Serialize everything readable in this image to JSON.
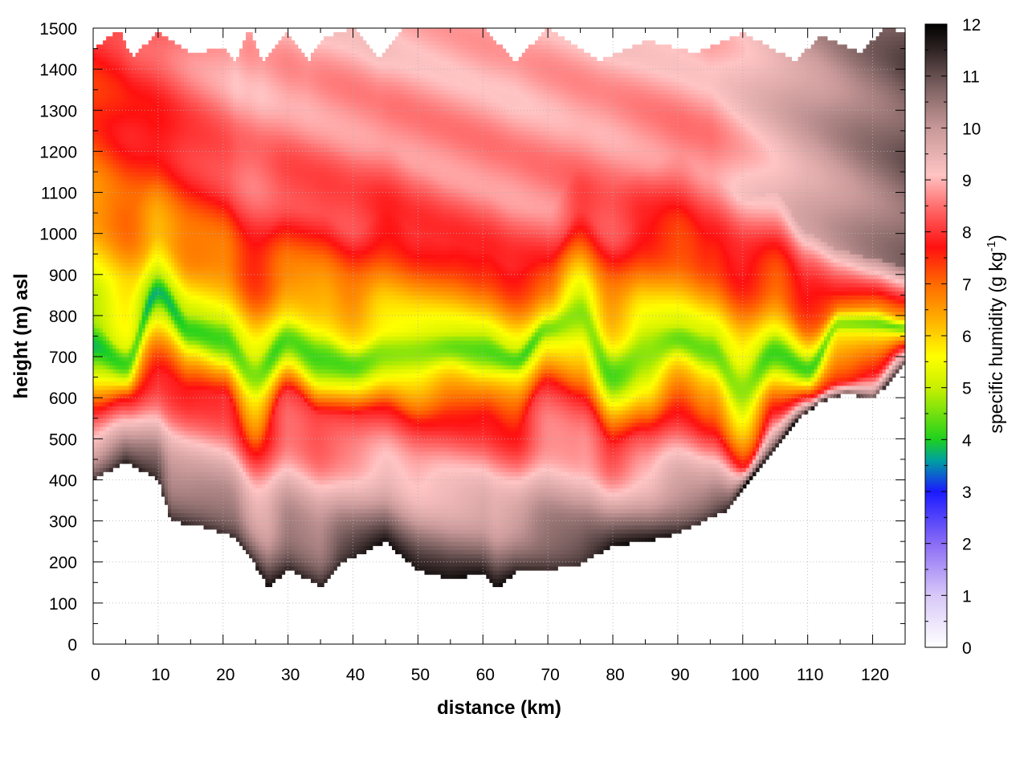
{
  "chart_data": {
    "type": "heatmap",
    "xlabel": "distance (km)",
    "ylabel": "height (m) asl",
    "xlim": [
      0,
      125
    ],
    "ylim": [
      0,
      1500
    ],
    "x_ticks": [
      "0",
      "10",
      "20",
      "30",
      "40",
      "50",
      "60",
      "70",
      "80",
      "90",
      "100",
      "110",
      "120"
    ],
    "y_ticks": [
      "0",
      "100",
      "200",
      "300",
      "400",
      "500",
      "600",
      "700",
      "800",
      "900",
      "1000",
      "1100",
      "1200",
      "1300",
      "1400",
      "1500"
    ],
    "grid": true,
    "colorbar": {
      "label_main": "specific humidity (g kg",
      "label_sup": "-1",
      "label_end": ")",
      "range": [
        0,
        12
      ],
      "ticks": [
        "0",
        "1",
        "2",
        "3",
        "4",
        "5",
        "6",
        "7",
        "8",
        "9",
        "10",
        "11",
        "12"
      ]
    },
    "colormap_stops": [
      {
        "value": 0,
        "color": "#ffffff"
      },
      {
        "value": 1,
        "color": "#d8c8f8"
      },
      {
        "value": 2,
        "color": "#8a6cf6"
      },
      {
        "value": 3,
        "color": "#1a1aff"
      },
      {
        "value": 3.6,
        "color": "#00a0a0"
      },
      {
        "value": 4,
        "color": "#1ed01e"
      },
      {
        "value": 5,
        "color": "#c8f000"
      },
      {
        "value": 5.6,
        "color": "#ffff00"
      },
      {
        "value": 6.3,
        "color": "#ffb000"
      },
      {
        "value": 7,
        "color": "#ff6a00"
      },
      {
        "value": 7.7,
        "color": "#ff1010"
      },
      {
        "value": 8.5,
        "color": "#ff6f6f"
      },
      {
        "value": 9.1,
        "color": "#ffc4c4"
      },
      {
        "value": 10,
        "color": "#c89898"
      },
      {
        "value": 10.8,
        "color": "#7c6060"
      },
      {
        "value": 11.5,
        "color": "#302424"
      },
      {
        "value": 12,
        "color": "#000000"
      }
    ],
    "data_bottom_m": [
      [
        0,
        400
      ],
      [
        5,
        445
      ],
      [
        10,
        400
      ],
      [
        12,
        300
      ],
      [
        17,
        285
      ],
      [
        22,
        260
      ],
      [
        25,
        190
      ],
      [
        27,
        135
      ],
      [
        30,
        185
      ],
      [
        35,
        140
      ],
      [
        38,
        200
      ],
      [
        42,
        225
      ],
      [
        45,
        250
      ],
      [
        48,
        205
      ],
      [
        50,
        180
      ],
      [
        55,
        160
      ],
      [
        60,
        170
      ],
      [
        62,
        135
      ],
      [
        65,
        175
      ],
      [
        70,
        180
      ],
      [
        75,
        195
      ],
      [
        80,
        240
      ],
      [
        85,
        250
      ],
      [
        90,
        270
      ],
      [
        94,
        300
      ],
      [
        98,
        330
      ],
      [
        100,
        380
      ],
      [
        102,
        420
      ],
      [
        104,
        460
      ],
      [
        108,
        540
      ],
      [
        112,
        590
      ],
      [
        116,
        610
      ],
      [
        120,
        595
      ],
      [
        125,
        680
      ]
    ],
    "data_top_m": [
      [
        0,
        1450
      ],
      [
        4,
        1495
      ],
      [
        6,
        1430
      ],
      [
        10,
        1490
      ],
      [
        15,
        1440
      ],
      [
        20,
        1450
      ],
      [
        22,
        1420
      ],
      [
        24,
        1500
      ],
      [
        26,
        1420
      ],
      [
        30,
        1490
      ],
      [
        33,
        1420
      ],
      [
        36,
        1480
      ],
      [
        40,
        1500
      ],
      [
        44,
        1420
      ],
      [
        48,
        1500
      ],
      [
        60,
        1500
      ],
      [
        65,
        1420
      ],
      [
        70,
        1500
      ],
      [
        78,
        1420
      ],
      [
        85,
        1470
      ],
      [
        93,
        1440
      ],
      [
        100,
        1490
      ],
      [
        108,
        1420
      ],
      [
        112,
        1480
      ],
      [
        118,
        1440
      ],
      [
        122,
        1500
      ],
      [
        125,
        1490
      ]
    ],
    "bands_m": {
      "x": [
        0,
        5,
        10,
        15,
        20,
        25,
        30,
        35,
        40,
        45,
        50,
        55,
        60,
        65,
        70,
        75,
        80,
        85,
        90,
        95,
        100,
        105,
        110,
        115,
        120,
        125
      ],
      "moist_top": [
        560,
        600,
        660,
        620,
        610,
        470,
        620,
        560,
        560,
        580,
        540,
        560,
        560,
        520,
        640,
        600,
        480,
        520,
        580,
        530,
        430,
        560,
        600,
        640,
        660,
        720
      ],
      "dry_low": [
        680,
        650,
        820,
        720,
        690,
        600,
        700,
        640,
        640,
        660,
        660,
        680,
        660,
        660,
        740,
        740,
        600,
        640,
        700,
        660,
        560,
        660,
        640,
        760,
        760,
        760
      ],
      "dry_mid": [
        780,
        720,
        900,
        800,
        790,
        700,
        790,
        760,
        720,
        760,
        760,
        760,
        760,
        720,
        800,
        860,
        720,
        780,
        780,
        760,
        680,
        760,
        700,
        800,
        800,
        780
      ],
      "dry_high": [
        900,
        850,
        1000,
        920,
        940,
        820,
        900,
        900,
        840,
        900,
        880,
        880,
        860,
        820,
        860,
        960,
        840,
        900,
        920,
        880,
        800,
        860,
        760,
        820,
        820,
        800
      ],
      "cap_low": [
        1120,
        1050,
        1150,
        1100,
        1100,
        980,
        1060,
        1050,
        1000,
        1060,
        1000,
        980,
        960,
        920,
        940,
        1060,
        980,
        1040,
        1080,
        1000,
        940,
        980,
        880,
        860,
        860,
        840
      ],
      "cap_high": [
        1300,
        1250,
        1300,
        1260,
        1260,
        1180,
        1240,
        1220,
        1200,
        1220,
        1160,
        1120,
        1100,
        1060,
        1060,
        1160,
        1120,
        1160,
        1200,
        1140,
        1080,
        1100,
        1000,
        960,
        940,
        920
      ]
    }
  }
}
